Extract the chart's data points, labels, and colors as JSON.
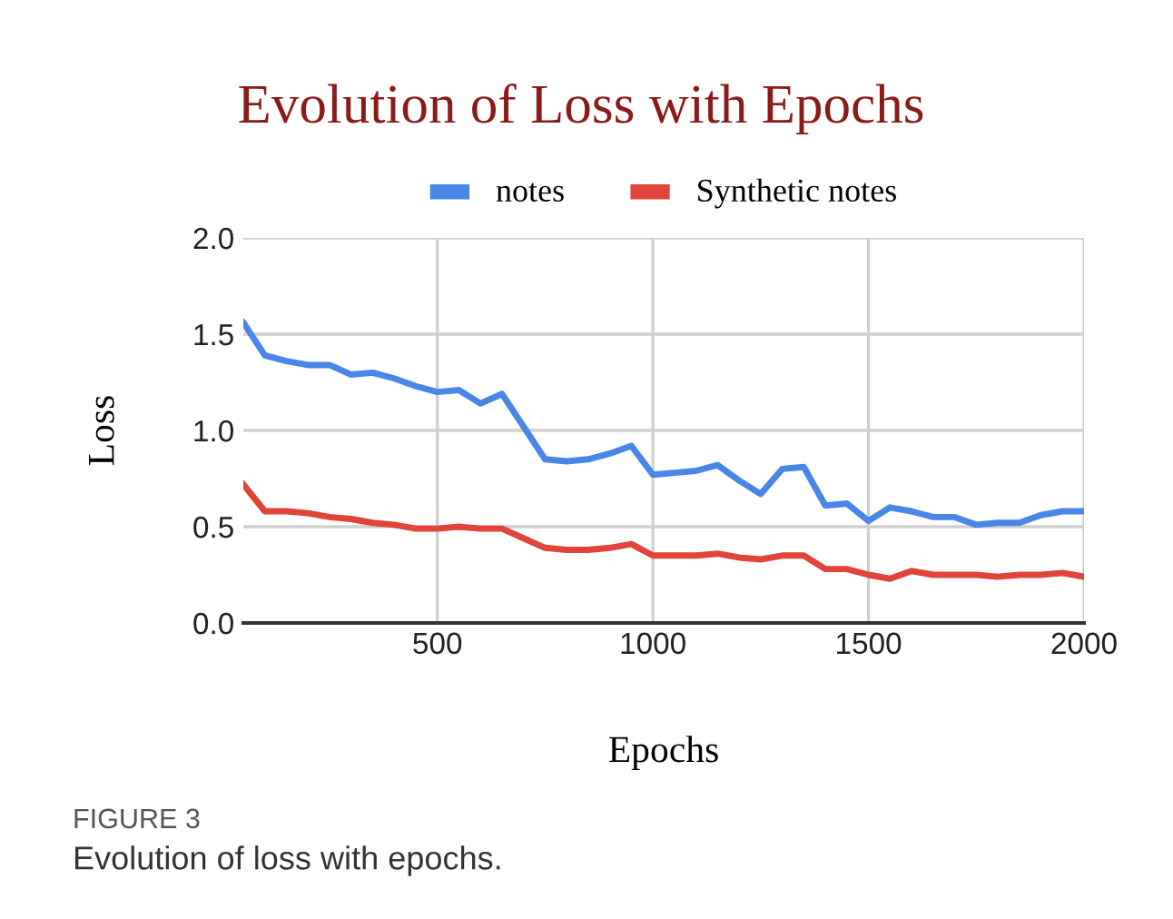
{
  "chart_data": {
    "type": "line",
    "title": "Evolution of Loss with Epochs",
    "xlabel": "Epochs",
    "ylabel": "Loss",
    "x": [
      50,
      100,
      150,
      200,
      250,
      300,
      350,
      400,
      450,
      500,
      550,
      600,
      650,
      700,
      750,
      800,
      850,
      900,
      950,
      1000,
      1050,
      1100,
      1150,
      1200,
      1250,
      1300,
      1350,
      1400,
      1450,
      1500,
      1550,
      1600,
      1650,
      1700,
      1750,
      1800,
      1850,
      1900,
      1950,
      2000
    ],
    "series": [
      {
        "name": "notes",
        "color": "#4a86e8",
        "values": [
          1.56,
          1.39,
          1.36,
          1.34,
          1.34,
          1.29,
          1.3,
          1.27,
          1.23,
          1.2,
          1.21,
          1.14,
          1.19,
          1.02,
          0.85,
          0.84,
          0.85,
          0.88,
          0.92,
          0.77,
          0.78,
          0.79,
          0.82,
          0.74,
          0.67,
          0.8,
          0.81,
          0.61,
          0.62,
          0.53,
          0.6,
          0.58,
          0.55,
          0.55,
          0.51,
          0.52,
          0.52,
          0.56,
          0.58,
          0.58
        ]
      },
      {
        "name": "Synthetic notes",
        "color": "#e0443a",
        "values": [
          0.72,
          0.58,
          0.58,
          0.57,
          0.55,
          0.54,
          0.52,
          0.51,
          0.49,
          0.49,
          0.5,
          0.49,
          0.49,
          0.44,
          0.39,
          0.38,
          0.38,
          0.39,
          0.41,
          0.35,
          0.35,
          0.35,
          0.36,
          0.34,
          0.33,
          0.35,
          0.35,
          0.28,
          0.28,
          0.25,
          0.23,
          0.27,
          0.25,
          0.25,
          0.25,
          0.24,
          0.25,
          0.25,
          0.26,
          0.24
        ]
      }
    ],
    "xlim": [
      50,
      2000
    ],
    "xticks": [
      500,
      1000,
      1500,
      2000
    ],
    "ylim": [
      0,
      2
    ],
    "yticks": [
      {
        "value": 0,
        "label": "0.0"
      },
      {
        "value": 0.5,
        "label": "0.5"
      },
      {
        "value": 1,
        "label": "1.0"
      },
      {
        "value": 1.5,
        "label": "1.5"
      },
      {
        "value": 2,
        "label": "2.0"
      }
    ],
    "grid": true,
    "legend": "top",
    "marker": "none",
    "line_style": "solid",
    "annotations": [
      "FIGURE 3",
      "Evolution of loss with epochs."
    ]
  }
}
